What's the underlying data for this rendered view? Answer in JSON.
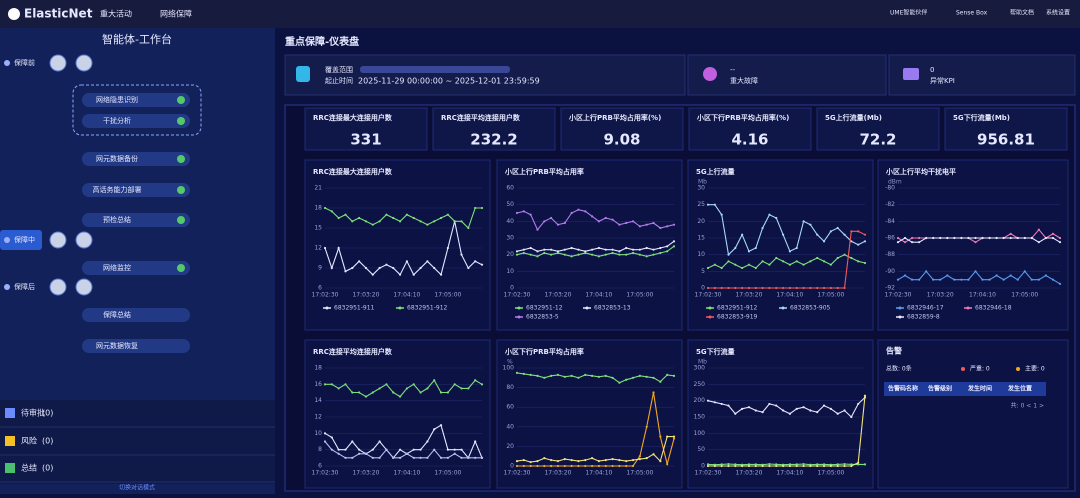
{
  "header": {
    "logo": "ElasticNet",
    "nav": [
      "重大活动",
      "网络保障"
    ],
    "tools": [
      "UME智能伙伴",
      "Sense Box",
      "帮助文档",
      "系统设置"
    ]
  },
  "sidebar": {
    "title": "智能体-工作台",
    "phases": [
      "保障前",
      "保障中",
      "保障后"
    ],
    "steps": [
      "网络隐患识别",
      "干扰分析",
      "网元数据备份",
      "高话务能力部署",
      "预检总结",
      "网络监控",
      "保障总结",
      "网元数据恢复"
    ],
    "queues": [
      {
        "label": "待审批",
        "count": "(0)"
      },
      {
        "label": "风险",
        "count": "(0)"
      },
      {
        "label": "总结",
        "count": "(0)"
      }
    ],
    "mode": "切换对话模式"
  },
  "main": {
    "title": "重点保障-仪表盘"
  },
  "info": {
    "scope_label": "覆盖范围",
    "time_label": "起止时间",
    "time_value": "2025-11-29 00:00:00 ~ 2025-12-01 23:59:59",
    "fault_value": "--",
    "fault_label": "重大故障",
    "kpi_value": 0,
    "kpi_label": "异常KPI"
  },
  "kpis": [
    {
      "label": "RRC连接最大连接用户数",
      "value": 331
    },
    {
      "label": "RRC连接平均连接用户数",
      "value": 232.2
    },
    {
      "label": "小区上行PRB平均占用率(%)",
      "value": 9.08
    },
    {
      "label": "小区下行PRB平均占用率(%)",
      "value": 4.16
    },
    {
      "label": "5G上行流量(Mb)",
      "value": 72.2
    },
    {
      "label": "5G下行流量(Mb)",
      "value": 956.81
    }
  ],
  "charts": [
    {
      "type": "line",
      "title": "RRC连接最大连接用户数",
      "ylim": [
        6,
        21
      ],
      "yticks": [
        6,
        9,
        12,
        15,
        18,
        21
      ],
      "categories": [
        "17:02:30",
        null,
        null,
        null,
        null,
        null,
        "17:03:20",
        null,
        null,
        null,
        null,
        null,
        "17:04:10",
        null,
        null,
        null,
        null,
        null,
        "17:05:00",
        null,
        null,
        null,
        null,
        null
      ],
      "series": [
        {
          "name": "6832951-911",
          "color": "#e6e8ff",
          "values": [
            12,
            9,
            12,
            8.5,
            9,
            10,
            9,
            8,
            9,
            9.5,
            9,
            8,
            10,
            8,
            9,
            10,
            9,
            8,
            12,
            16,
            11,
            9,
            10,
            9.5
          ]
        },
        {
          "name": "6832951-912",
          "color": "#7ee07a",
          "values": [
            18,
            17.5,
            16.5,
            17,
            16,
            16.5,
            16,
            15.5,
            16,
            17,
            16.5,
            16,
            17,
            16.5,
            16,
            15.5,
            16,
            16.5,
            17,
            16,
            16,
            15,
            18,
            18
          ]
        }
      ]
    },
    {
      "type": "line",
      "title": "小区上行PRB平均占用率",
      "ylim": [
        0,
        60
      ],
      "yticks": [
        0,
        10,
        20,
        30,
        40,
        50,
        60
      ],
      "categories": [
        "17:02:30",
        null,
        null,
        null,
        null,
        null,
        "17:03:20",
        null,
        null,
        null,
        null,
        null,
        "17:04:10",
        null,
        null,
        null,
        null,
        null,
        "17:05:00",
        null,
        null,
        null,
        null,
        null
      ],
      "series": [
        {
          "name": "6832951-12",
          "color": "#7ee07a",
          "values": [
            20,
            21,
            20,
            19,
            21,
            20,
            21,
            20,
            19,
            20,
            21,
            20,
            19,
            20,
            21,
            20,
            20,
            21,
            20,
            19,
            20,
            21,
            22,
            25
          ]
        },
        {
          "name": "6832853-13",
          "color": "#e6e8ff",
          "values": [
            22,
            23,
            24,
            22,
            23,
            23,
            22,
            23,
            24,
            23,
            22,
            23,
            24,
            23,
            23,
            22,
            24,
            23,
            23,
            24,
            23,
            24,
            25,
            28
          ]
        },
        {
          "name": "6832853-5",
          "color": "#b57cf0",
          "values": [
            45,
            46,
            44,
            35,
            40,
            42,
            38,
            39,
            45,
            47,
            46,
            43,
            40,
            42,
            41,
            38,
            39,
            40,
            37,
            38,
            39,
            36,
            37,
            38
          ]
        }
      ]
    },
    {
      "type": "line",
      "title": "5G上行流量",
      "unit": "Mb",
      "ylim": [
        0,
        30
      ],
      "yticks": [
        0,
        5,
        10,
        15,
        20,
        25,
        30
      ],
      "categories": [
        "17:02:30",
        null,
        null,
        null,
        null,
        null,
        "17:03:20",
        null,
        null,
        null,
        null,
        null,
        "17:04:10",
        null,
        null,
        null,
        null,
        null,
        "17:05:00",
        null,
        null,
        null,
        null,
        null
      ],
      "series": [
        {
          "name": "6832951-912",
          "color": "#7ee07a",
          "values": [
            6,
            7,
            6,
            8,
            7,
            6,
            7,
            6,
            8,
            7,
            9,
            8,
            7,
            8,
            7,
            8,
            9,
            8,
            7,
            9,
            10,
            9,
            8,
            7.5
          ]
        },
        {
          "name": "6832853-905",
          "color": "#a8d8f8",
          "values": [
            25,
            25,
            22,
            10,
            12,
            16,
            11,
            12,
            18,
            22,
            21,
            16,
            11,
            12,
            20,
            19,
            16,
            14,
            17,
            18,
            16,
            14,
            13,
            14
          ]
        },
        {
          "name": "6832853-919",
          "color": "#f25a5a",
          "values": [
            0,
            0,
            0,
            0,
            0,
            0,
            0,
            0,
            0,
            0,
            0,
            0,
            0,
            0,
            0,
            0,
            0,
            0,
            0,
            0,
            0,
            17,
            17,
            16
          ]
        }
      ]
    },
    {
      "type": "line",
      "title": "小区上行平均干扰电平",
      "unit": "dBm",
      "ylim": [
        -92,
        -80
      ],
      "yticks": [
        -92,
        -90,
        -88,
        -86,
        -84,
        -82,
        -80
      ],
      "categories": [
        "17:02:30",
        null,
        null,
        null,
        null,
        null,
        "17:03:20",
        null,
        null,
        null,
        null,
        null,
        "17:04:10",
        null,
        null,
        null,
        null,
        null,
        "17:05:00",
        null,
        null,
        null,
        null,
        null
      ],
      "series": [
        {
          "name": "6832946-17",
          "color": "#5b9cf0",
          "values": [
            -91,
            -90.5,
            -91,
            -91,
            -90,
            -91,
            -91,
            -90.5,
            -91,
            -91,
            -91,
            -90,
            -91,
            -91,
            -90.5,
            -91,
            -90.5,
            -91,
            -90,
            -91,
            -91,
            -90.5,
            -91,
            -91.5
          ]
        },
        {
          "name": "6832946-18",
          "color": "#f07ab8",
          "values": [
            -86,
            -86.5,
            -86,
            -86,
            -86,
            -86,
            -86,
            -86,
            -86,
            -86,
            -86,
            -86.5,
            -86,
            -86,
            -86,
            -86,
            -85.5,
            -86,
            -86,
            -86,
            -85,
            -86,
            -85.5,
            -86
          ]
        },
        {
          "name": "6832859-8",
          "color": "#e6e8ff",
          "values": [
            -86.5,
            -86,
            -86.5,
            -86.5,
            -86,
            -86,
            -86,
            -86,
            -86,
            -86,
            -86,
            -86,
            -86,
            -86,
            -86,
            -86,
            -86,
            -86,
            -86,
            -86,
            -86.5,
            -86,
            -86,
            -86.5
          ]
        }
      ]
    },
    {
      "type": "line",
      "title": "RRC连接平均连接用户数",
      "ylim": [
        6,
        18
      ],
      "yticks": [
        6,
        8,
        10,
        12,
        14,
        16,
        18
      ],
      "categories": [
        "17:02:30",
        null,
        null,
        null,
        null,
        null,
        "17:03:20",
        null,
        null,
        null,
        null,
        null,
        "17:04:10",
        null,
        null,
        null,
        null,
        null,
        "17:05:00",
        null,
        null,
        null,
        null,
        null
      ],
      "series": [
        {
          "color": "#7ee07a",
          "values": [
            16,
            16,
            15.5,
            16,
            15,
            15,
            14.5,
            15,
            15.5,
            16,
            15,
            14.5,
            15.5,
            16,
            15,
            15.5,
            16.5,
            15,
            15,
            16,
            15.5,
            15.5,
            16.5,
            16
          ]
        },
        {
          "color": "#e6e8ff",
          "values": [
            10,
            9.5,
            8,
            8,
            9,
            8,
            7.5,
            8,
            9,
            8,
            7,
            8,
            7.5,
            8,
            8,
            9,
            10.5,
            11,
            8,
            8,
            8,
            7,
            9,
            7
          ]
        },
        {
          "color": "#b8c0f0",
          "values": [
            9,
            8,
            7.5,
            7,
            7,
            7.5,
            7.5,
            7,
            7,
            8,
            7,
            7,
            7.5,
            7,
            7,
            7,
            8,
            7,
            7,
            7.5,
            7,
            7,
            7,
            7
          ]
        }
      ]
    },
    {
      "type": "line",
      "title": "小区下行PRB平均占用率",
      "unit": "%",
      "ylim": [
        0,
        100
      ],
      "yticks": [
        0,
        20,
        40,
        60,
        80,
        100
      ],
      "categories": [
        "17:02:30",
        null,
        null,
        null,
        null,
        null,
        "17:03:20",
        null,
        null,
        null,
        null,
        null,
        "17:04:10",
        null,
        null,
        null,
        null,
        null,
        "17:05:00",
        null,
        null,
        null,
        null,
        null
      ],
      "series": [
        {
          "color": "#7ee07a",
          "values": [
            95,
            94,
            93,
            92,
            90,
            92,
            93,
            91,
            92,
            90,
            93,
            92,
            91,
            92,
            90,
            85,
            88,
            90,
            92,
            91,
            90,
            86,
            93,
            92
          ]
        },
        {
          "color": "#f5a623",
          "values": [
            0,
            0,
            0,
            0,
            0,
            0,
            0,
            0,
            0,
            0,
            0,
            0,
            0,
            0,
            0,
            0,
            0,
            0,
            10,
            40,
            75,
            30,
            2,
            28
          ]
        },
        {
          "color": "#f2e27a",
          "values": [
            5,
            6,
            4,
            5,
            8,
            6,
            5,
            7,
            6,
            5,
            6,
            8,
            5,
            6,
            7,
            6,
            5,
            6,
            7,
            8,
            12,
            5,
            30,
            30
          ]
        }
      ]
    },
    {
      "type": "line",
      "title": "5G下行流量",
      "unit": "Mb",
      "ylim": [
        0,
        300
      ],
      "yticks": [
        0,
        50,
        100,
        150,
        200,
        250,
        300
      ],
      "categories": [
        "17:02:30",
        null,
        null,
        null,
        null,
        null,
        "17:03:20",
        null,
        null,
        null,
        null,
        null,
        "17:04:10",
        null,
        null,
        null,
        null,
        null,
        "17:05:00",
        null,
        null,
        null,
        null,
        null
      ],
      "series": [
        {
          "color": "#e6e8ff",
          "values": [
            200,
            195,
            190,
            185,
            160,
            175,
            180,
            170,
            165,
            190,
            185,
            170,
            160,
            175,
            180,
            170,
            165,
            185,
            175,
            160,
            170,
            150,
            190,
            210
          ]
        },
        {
          "color": "#7ee07a",
          "values": [
            5,
            4,
            5,
            6,
            5,
            4,
            5,
            5,
            4,
            6,
            5,
            4,
            5,
            5,
            6,
            4,
            5,
            5,
            4,
            5,
            6,
            5,
            5,
            5
          ]
        },
        {
          "color": "#f2e27a",
          "values": [
            0,
            0,
            0,
            0,
            0,
            0,
            0,
            0,
            0,
            0,
            0,
            0,
            0,
            0,
            0,
            0,
            0,
            0,
            0,
            0,
            0,
            0,
            10,
            215
          ]
        }
      ]
    }
  ],
  "alarm": {
    "title": "告警",
    "total": "总数: 0条",
    "severe": "严重: 0",
    "major": "主要: 0",
    "columns": [
      "告警码名称",
      "告警级别",
      "发生时间",
      "发生位置"
    ],
    "pager": "共: 0 < 1 >"
  }
}
